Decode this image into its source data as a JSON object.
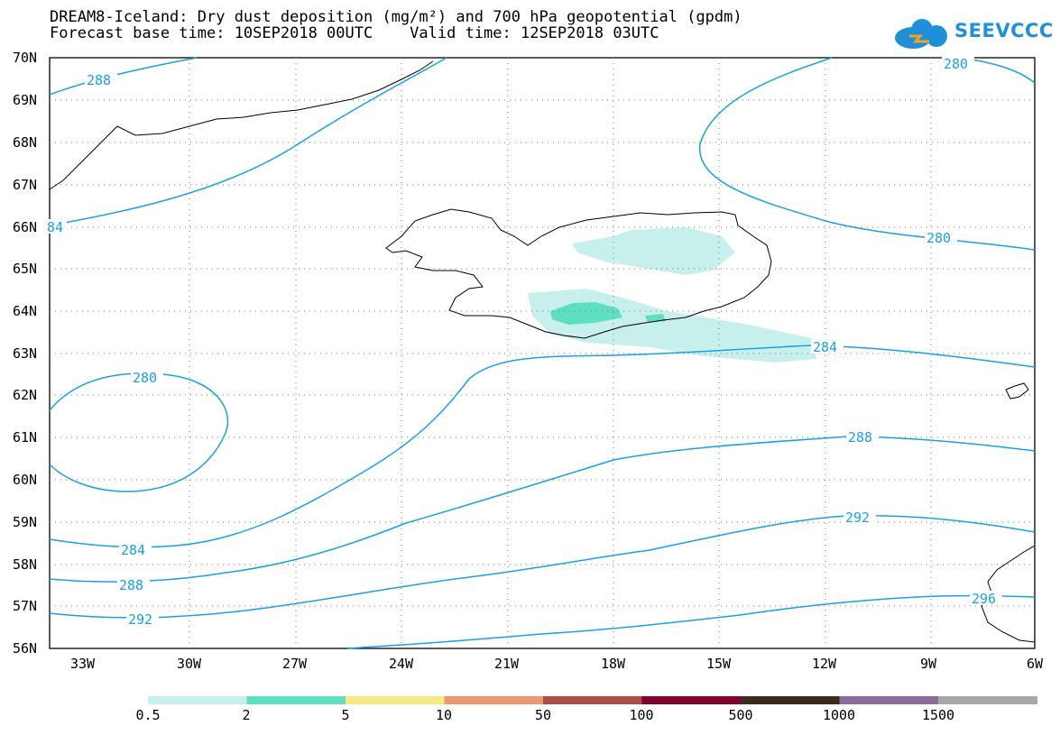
{
  "title": {
    "line1": "DREAM8-Iceland: Dry dust deposition (mg/m²) and 700 hPa geopotential (gpdm)",
    "line2": "Forecast base time: 10SEP2018 00UTC    Valid time: 12SEP2018 03UTC"
  },
  "logo": {
    "text": "SEEVCCC"
  },
  "map": {
    "lon_labels": [
      "33W",
      "30W",
      "27W",
      "24W",
      "21W",
      "18W",
      "15W",
      "12W",
      "9W",
      "6W"
    ],
    "lat_labels": [
      "70N",
      "69N",
      "68N",
      "67N",
      "66N",
      "65N",
      "64N",
      "63N",
      "62N",
      "61N",
      "60N",
      "59N",
      "58N",
      "57N",
      "56N"
    ],
    "contour_color": "#1aa0e6",
    "contour_labels": [
      "288",
      "84",
      "280",
      "280",
      "284",
      "280",
      "284",
      "288",
      "292",
      "288",
      "292",
      "296"
    ]
  },
  "legend": {
    "ticks": [
      "0.5",
      "2",
      "5",
      "10",
      "50",
      "100",
      "500",
      "1000",
      "1500"
    ],
    "colors": [
      "#c7f0ec",
      "#5ddfc0",
      "#f6ea82",
      "#ec9672",
      "#aa4d47",
      "#80002e",
      "#3d2a1a",
      "#8e6b9c",
      "#a8a8a8"
    ]
  }
}
